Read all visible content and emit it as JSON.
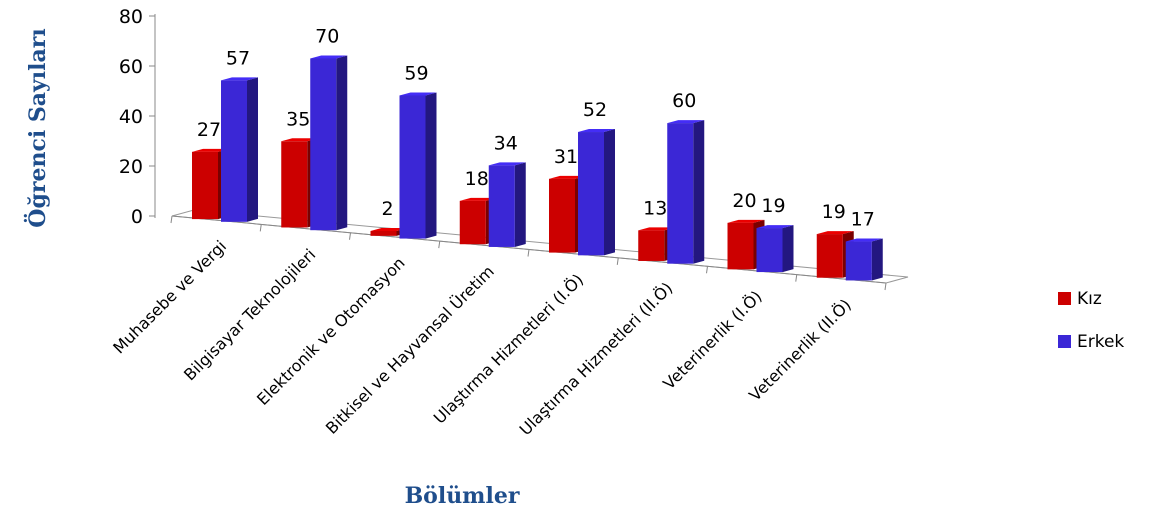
{
  "chart_data": {
    "type": "bar",
    "title": "",
    "xlabel": "Bölümler",
    "ylabel": "Öğrenci Sayıları",
    "ylim": [
      0,
      80
    ],
    "yticks": [
      "0",
      "20",
      "40",
      "60",
      "80"
    ],
    "categories": [
      "Muhasebe ve Vergi",
      "Bilgisayar Teknolojileri",
      "Elektronik ve Otomasyon",
      "Bitkisel ve Hayvansal Üretim",
      "Ulaştırma Hizmetleri (I.Ö)",
      "Ulaştırma Hizmetleri (II.Ö)",
      "Veterinerlik (I.Ö)",
      "Veterinerlik (II.Ö)"
    ],
    "series": [
      {
        "name": "Kız",
        "values": [
          27,
          35,
          2,
          18,
          31,
          13,
          20,
          19
        ],
        "labels": [
          "27",
          "35",
          "2",
          "18",
          "31",
          "13",
          "20",
          "19"
        ],
        "color": "#cc0000"
      },
      {
        "name": "Erkek",
        "values": [
          57,
          70,
          59,
          34,
          52,
          60,
          19,
          17
        ],
        "labels": [
          "57",
          "70",
          "59",
          "34",
          "52",
          "60",
          "19",
          "17"
        ],
        "color": "#3b27d6"
      }
    ],
    "grid": false,
    "legend_position": "right",
    "style": "3d-column"
  }
}
